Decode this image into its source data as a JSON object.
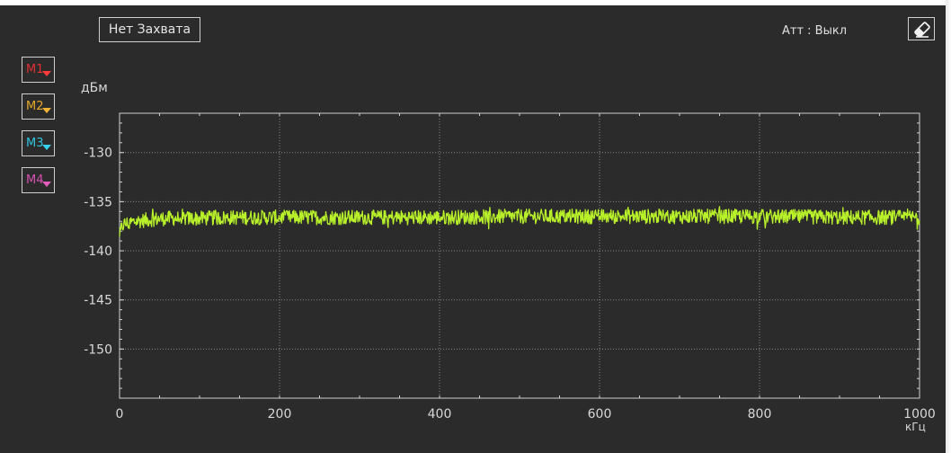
{
  "capture_status": "Нет Захвата",
  "attenuator_status": "Атт : Выкл",
  "markers": [
    {
      "label": "M1",
      "color": "#e03030",
      "arrow_color": "#ff3a3a"
    },
    {
      "label": "M2",
      "color": "#e8a62a",
      "arrow_color": "#f2b436"
    },
    {
      "label": "M3",
      "color": "#2ec4de",
      "arrow_color": "#36d2ee"
    },
    {
      "label": "M4",
      "color": "#d850b0",
      "arrow_color": "#e45cbe"
    }
  ],
  "icons": {
    "eraser": "eraser-icon",
    "marker_dropdown": "chevron-down-icon"
  },
  "colors": {
    "background": "#2b2b2b",
    "frame": "#cfcfcf",
    "grid": "#8a8a8a",
    "trace": "#b8f02a",
    "text": "#d8d8d8"
  },
  "chart_data": {
    "type": "line",
    "ylabel": "дБм",
    "xlabel": "кГц",
    "xlim": [
      0,
      1000
    ],
    "ylim": [
      -155,
      -126
    ],
    "x_ticks": [
      "0",
      "200",
      "400",
      "600",
      "800",
      "1000"
    ],
    "y_ticks": [
      "-130",
      "-135",
      "-140",
      "-145",
      "-150"
    ],
    "y_tick_values": [
      -130,
      -135,
      -140,
      -145,
      -150
    ],
    "x_tick_values": [
      0,
      200,
      400,
      600,
      800,
      1000
    ],
    "grid": true,
    "series": [
      {
        "x": [
          0,
          2,
          5,
          10,
          20,
          40,
          60,
          100,
          150,
          200,
          300,
          400,
          500,
          600,
          700,
          800,
          900,
          1000
        ],
        "y": [
          -138.8,
          -137.8,
          -137.3,
          -137.2,
          -137.0,
          -136.8,
          -136.7,
          -136.7,
          -136.6,
          -136.6,
          -136.6,
          -136.6,
          -136.5,
          -136.5,
          -136.5,
          -136.5,
          -136.6,
          -136.6
        ],
        "noise_peak_to_peak_db": 2
      }
    ]
  }
}
